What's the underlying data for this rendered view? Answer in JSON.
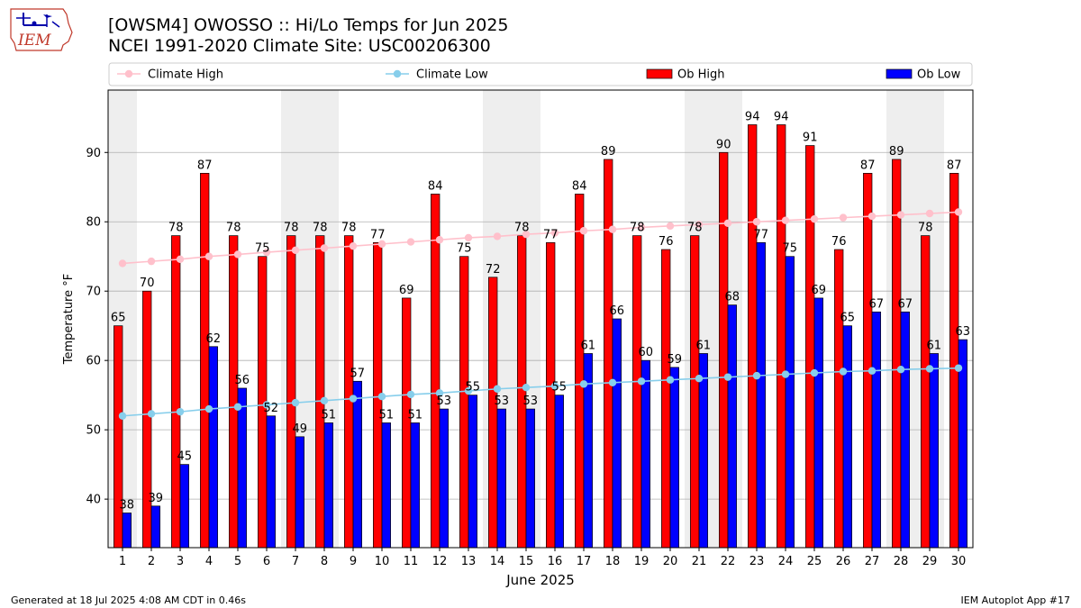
{
  "title": {
    "line1": "[OWSM4] OWOSSO :: Hi/Lo Temps for Jun 2025",
    "line2": "NCEI 1991-2020 Climate Site: USC00206300"
  },
  "logo": {
    "text": "IEM",
    "icon": "iem-iowa-logo-icon"
  },
  "footer": {
    "left": "Generated at 18 Jul 2025 4:08 AM CDT in 0.46s",
    "right": "IEM Autoplot App #17"
  },
  "colors": {
    "ob_high": "#ff0000",
    "ob_low": "#0000ff",
    "climate_high": "#ffc0cb",
    "climate_low": "#87ceeb",
    "weekend_band": "#eeeeee",
    "grid": "#b0b0b0"
  },
  "chart_data": {
    "type": "bar",
    "xlabel": "June 2025",
    "ylabel": "Temperature °F",
    "ylim": [
      33,
      99
    ],
    "yticks": [
      40,
      50,
      60,
      70,
      80,
      90
    ],
    "grid": "y",
    "legend_placement": "top",
    "categories": [
      "1",
      "2",
      "3",
      "4",
      "5",
      "6",
      "7",
      "8",
      "9",
      "10",
      "11",
      "12",
      "13",
      "14",
      "15",
      "16",
      "17",
      "18",
      "19",
      "20",
      "21",
      "22",
      "23",
      "24",
      "25",
      "26",
      "27",
      "28",
      "29",
      "30"
    ],
    "shaded_days": [
      1,
      7,
      8,
      14,
      15,
      21,
      22,
      28,
      29
    ],
    "series": [
      {
        "name": "Ob High",
        "kind": "bar",
        "color_key": "ob_high",
        "data_labels": true,
        "values": [
          65,
          70,
          78,
          87,
          78,
          75,
          78,
          78,
          78,
          77,
          69,
          84,
          75,
          72,
          78,
          77,
          84,
          89,
          78,
          76,
          78,
          90,
          94,
          94,
          91,
          76,
          87,
          89,
          78,
          87
        ]
      },
      {
        "name": "Ob Low",
        "kind": "bar",
        "color_key": "ob_low",
        "data_labels": true,
        "values": [
          38,
          39,
          45,
          62,
          56,
          52,
          49,
          51,
          57,
          51,
          51,
          53,
          55,
          53,
          53,
          55,
          61,
          66,
          60,
          59,
          61,
          68,
          77,
          75,
          69,
          65,
          67,
          67,
          61,
          63
        ]
      },
      {
        "name": "Climate High",
        "kind": "line",
        "color_key": "climate_high",
        "values": [
          74.0,
          74.3,
          74.6,
          75.0,
          75.3,
          75.6,
          75.9,
          76.2,
          76.5,
          76.8,
          77.1,
          77.4,
          77.7,
          77.9,
          78.2,
          78.4,
          78.7,
          78.9,
          79.2,
          79.4,
          79.6,
          79.8,
          80.0,
          80.2,
          80.4,
          80.6,
          80.8,
          81.0,
          81.2,
          81.4
        ]
      },
      {
        "name": "Climate Low",
        "kind": "line",
        "color_key": "climate_low",
        "values": [
          52.0,
          52.3,
          52.6,
          53.0,
          53.3,
          53.6,
          53.9,
          54.2,
          54.5,
          54.8,
          55.1,
          55.3,
          55.6,
          55.9,
          56.1,
          56.3,
          56.6,
          56.8,
          57.0,
          57.2,
          57.4,
          57.6,
          57.8,
          58.0,
          58.2,
          58.4,
          58.5,
          58.7,
          58.8,
          58.9
        ]
      }
    ]
  }
}
